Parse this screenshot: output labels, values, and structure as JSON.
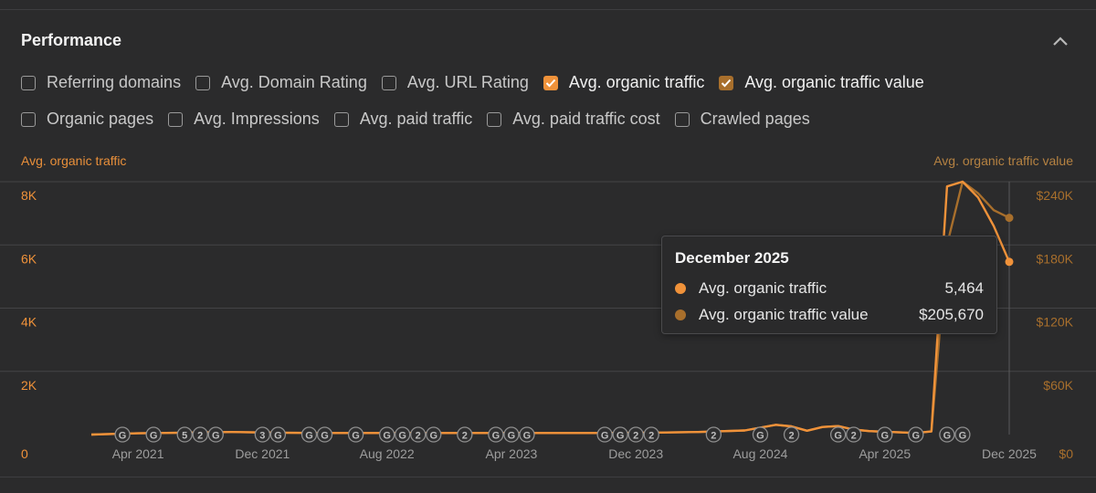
{
  "panel": {
    "title": "Performance"
  },
  "metrics_row1": [
    {
      "label": "Referring domains",
      "checked": false
    },
    {
      "label": "Avg. Domain Rating",
      "checked": false
    },
    {
      "label": "Avg. URL Rating",
      "checked": false
    },
    {
      "label": "Avg. organic traffic",
      "checked": true,
      "color": "#f0923a"
    },
    {
      "label": "Avg. organic traffic value",
      "checked": true,
      "color": "#a86f2c"
    }
  ],
  "metrics_row2": [
    {
      "label": "Organic pages",
      "checked": false
    },
    {
      "label": "Avg. Impressions",
      "checked": false
    },
    {
      "label": "Avg. paid traffic",
      "checked": false
    },
    {
      "label": "Avg. paid traffic cost",
      "checked": false
    },
    {
      "label": "Crawled pages",
      "checked": false
    }
  ],
  "colors": {
    "traffic": "#f0923a",
    "value": "#a86f2c",
    "grid": "#444446",
    "marker_bg": "#2f2f30",
    "marker_text": "#bdbdbd"
  },
  "icons": {
    "collapse": "chevron-up-icon",
    "checkbox_checked": "check-icon"
  },
  "tooltip": {
    "title": "December 2025",
    "rows": [
      {
        "name": "Avg. organic traffic",
        "value": "5,464",
        "color": "#f0923a"
      },
      {
        "name": "Avg. organic traffic value",
        "value": "$205,670",
        "color": "#a86f2c"
      }
    ]
  },
  "chart_data": {
    "type": "line",
    "left_axis_title": "Avg. organic traffic",
    "right_axis_title": "Avg. organic traffic value",
    "y_left_ticks": [
      "0",
      "2K",
      "4K",
      "6K",
      "8K"
    ],
    "y_right_ticks": [
      "$0",
      "$60K",
      "$120K",
      "$180K",
      "$240K"
    ],
    "ylim_left": [
      0,
      8000
    ],
    "ylim_right": [
      0,
      240000
    ],
    "x_tick_labels": [
      "Apr 2021",
      "Dec 2021",
      "Aug 2022",
      "Apr 2023",
      "Dec 2023",
      "Aug 2024",
      "Apr 2025",
      "Dec 2025"
    ],
    "x_range": [
      "Jan 2021",
      "Dec 2025"
    ],
    "grid": true,
    "series": [
      {
        "name": "Avg. organic traffic",
        "axis": "left",
        "x": [
          "Jan 2021",
          "Apr 2021",
          "Jul 2021",
          "Oct 2021",
          "Jan 2022",
          "Apr 2022",
          "Jul 2022",
          "Oct 2022",
          "Jan 2023",
          "Apr 2023",
          "Jul 2023",
          "Oct 2023",
          "Jan 2024",
          "Apr 2024",
          "Jul 2024",
          "Sep 2024",
          "Oct 2024",
          "Nov 2024",
          "Dec 2024",
          "Jan 2025",
          "Feb 2025",
          "Mar 2025",
          "Apr 2025",
          "May 2025",
          "Jun 2025",
          "Jul 2025",
          "Aug 2025",
          "Sep 2025",
          "Oct 2025",
          "Nov 2025",
          "Dec 2025"
        ],
        "values": [
          0,
          40,
          60,
          80,
          60,
          50,
          50,
          50,
          50,
          50,
          50,
          50,
          60,
          80,
          130,
          310,
          260,
          120,
          240,
          270,
          160,
          110,
          90,
          70,
          50,
          100,
          7850,
          8000,
          7500,
          6600,
          5464
        ]
      },
      {
        "name": "Avg. organic traffic value",
        "axis": "right",
        "x": [
          "Jan 2021",
          "Apr 2021",
          "Jul 2021",
          "Oct 2021",
          "Jan 2022",
          "Apr 2022",
          "Jul 2022",
          "Oct 2022",
          "Jan 2023",
          "Apr 2023",
          "Jul 2023",
          "Oct 2023",
          "Jan 2024",
          "Apr 2024",
          "Jul 2024",
          "Sep 2024",
          "Oct 2024",
          "Nov 2024",
          "Dec 2024",
          "Jan 2025",
          "Feb 2025",
          "Mar 2025",
          "Apr 2025",
          "May 2025",
          "Jun 2025",
          "Jul 2025",
          "Aug 2025",
          "Sep 2025",
          "Oct 2025",
          "Nov 2025",
          "Dec 2025"
        ],
        "values": [
          0,
          1200,
          1800,
          2400,
          1800,
          1500,
          1500,
          1500,
          1500,
          1500,
          1500,
          1500,
          1800,
          2400,
          3900,
          9300,
          7800,
          3600,
          7200,
          8100,
          4800,
          3300,
          2700,
          2100,
          1500,
          3000,
          180000,
          240000,
          229000,
          213000,
          205670
        ]
      }
    ],
    "markers": [
      {
        "month": "Mar 2021",
        "label": "G"
      },
      {
        "month": "May 2021",
        "label": "G"
      },
      {
        "month": "Jul 2021",
        "label": "5"
      },
      {
        "month": "Aug 2021",
        "label": "2"
      },
      {
        "month": "Sep 2021",
        "label": "G"
      },
      {
        "month": "Dec 2021",
        "label": "3"
      },
      {
        "month": "Jan 2022",
        "label": "G"
      },
      {
        "month": "Mar 2022",
        "label": "G"
      },
      {
        "month": "Apr 2022",
        "label": "G"
      },
      {
        "month": "Jun 2022",
        "label": "G"
      },
      {
        "month": "Aug 2022",
        "label": "G"
      },
      {
        "month": "Sep 2022",
        "label": "G"
      },
      {
        "month": "Oct 2022",
        "label": "2"
      },
      {
        "month": "Nov 2022",
        "label": "G"
      },
      {
        "month": "Jan 2023",
        "label": "2"
      },
      {
        "month": "Mar 2023",
        "label": "G"
      },
      {
        "month": "Apr 2023",
        "label": "G"
      },
      {
        "month": "May 2023",
        "label": "G"
      },
      {
        "month": "Oct 2023",
        "label": "G"
      },
      {
        "month": "Nov 2023",
        "label": "G"
      },
      {
        "month": "Dec 2023",
        "label": "2"
      },
      {
        "month": "Jan 2024",
        "label": "2"
      },
      {
        "month": "May 2024",
        "label": "2"
      },
      {
        "month": "Aug 2024",
        "label": "G"
      },
      {
        "month": "Oct 2024",
        "label": "2"
      },
      {
        "month": "Jan 2025",
        "label": "G"
      },
      {
        "month": "Feb 2025",
        "label": "2"
      },
      {
        "month": "Apr 2025",
        "label": "G"
      },
      {
        "month": "Jun 2025",
        "label": "G"
      },
      {
        "month": "Aug 2025",
        "label": "G"
      },
      {
        "month": "Sep 2025",
        "label": "G"
      }
    ],
    "highlight": "Dec 2025"
  }
}
